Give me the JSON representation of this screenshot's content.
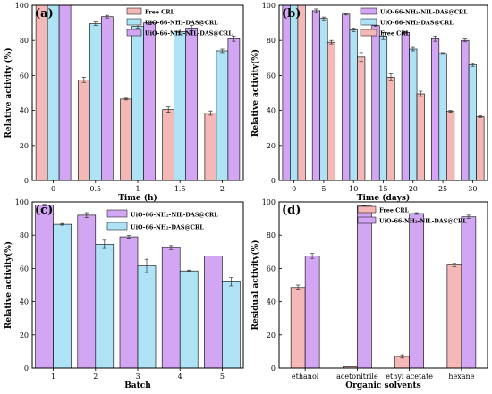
{
  "colors": {
    "free": "#F4B8B6",
    "das": "#AEE3F5",
    "nil": "#D2A6F2",
    "edge": "#000000",
    "error": "#333333"
  },
  "chart_data": [
    {
      "id": "a",
      "panel_label": "(a)",
      "type": "bar",
      "xlabel": "Time (h)",
      "ylabel": "Relative activity (%)",
      "ylim": [
        0,
        100
      ],
      "yticks": [
        0,
        20,
        40,
        60,
        80,
        100
      ],
      "categories": [
        "0",
        "0.5",
        "1",
        "1.5",
        "2"
      ],
      "legend_position": "top-right",
      "series": [
        {
          "name": "Free CRL",
          "color_key": "free",
          "values": [
            100,
            57.5,
            46.5,
            40.5,
            38.5
          ],
          "errors": [
            0,
            1.5,
            0.5,
            1.5,
            1.2
          ]
        },
        {
          "name": "UiO-66-NH₂-DAS@CRL",
          "color_key": "das",
          "values": [
            100,
            89.5,
            88,
            85,
            74
          ],
          "errors": [
            0,
            1.0,
            1.0,
            1.5,
            1.0
          ]
        },
        {
          "name": "UiO-66-NH₂-NIL-DAS@CRL",
          "color_key": "nil",
          "values": [
            100,
            93.5,
            90,
            87,
            81
          ],
          "errors": [
            0,
            0.8,
            1.0,
            1.5,
            1.5
          ]
        }
      ]
    },
    {
      "id": "b",
      "panel_label": "(b)",
      "type": "bar",
      "xlabel": "Time (days)",
      "ylabel": "Relative activity(%)",
      "ylim": [
        0,
        100
      ],
      "yticks": [
        0,
        20,
        40,
        60,
        80,
        100
      ],
      "categories": [
        "0",
        "5",
        "10",
        "15",
        "20",
        "25",
        "30"
      ],
      "legend_position": "top-right",
      "series": [
        {
          "name": "UiO-66-NH₂-NIL-DAS@CRL",
          "color_key": "nil",
          "values": [
            100,
            97,
            95,
            88.5,
            84.5,
            81,
            80
          ],
          "errors": [
            0,
            1.0,
            0.5,
            0.5,
            0.5,
            1.5,
            0.8
          ]
        },
        {
          "name": "UiO-66-NH₂-DAS@CRL",
          "color_key": "das",
          "values": [
            100,
            92.5,
            86,
            82.5,
            75,
            72.5,
            66
          ],
          "errors": [
            0,
            0.8,
            1.0,
            2.0,
            1.0,
            0.5,
            0.8
          ]
        },
        {
          "name": "Free CRL",
          "color_key": "free",
          "values": [
            100,
            79,
            70.5,
            59,
            49.5,
            39.5,
            36.5
          ],
          "errors": [
            0,
            1.0,
            2.5,
            2.0,
            1.5,
            0.5,
            0.5
          ]
        }
      ]
    },
    {
      "id": "c",
      "panel_label": "(c)",
      "type": "bar",
      "xlabel": "Batch",
      "ylabel": "Relative activity(%)",
      "ylim": [
        0,
        100
      ],
      "yticks": [
        0,
        20,
        40,
        60,
        80,
        100
      ],
      "categories": [
        "1",
        "2",
        "3",
        "4",
        "5"
      ],
      "legend_position": "top-right",
      "series": [
        {
          "name": "UiO-66-NH₂-NIL-DAS@CRL",
          "color_key": "nil",
          "values": [
            98,
            92,
            79,
            72.5,
            67.5
          ],
          "errors": [
            0.5,
            1.5,
            0.8,
            1.2,
            0
          ]
        },
        {
          "name": "UiO-66-NH₂-DAS@CRL",
          "color_key": "das",
          "values": [
            86.5,
            74.5,
            61.5,
            58.5,
            52
          ],
          "errors": [
            0.5,
            2.5,
            4.0,
            0.5,
            2.5
          ]
        }
      ]
    },
    {
      "id": "d",
      "panel_label": "(d)",
      "type": "bar",
      "xlabel": "Organic solvents",
      "ylabel": "Residual activity(%)",
      "ylim": [
        0,
        100
      ],
      "yticks": [
        0,
        20,
        40,
        60,
        80,
        100
      ],
      "categories": [
        "ethanol",
        "acetonitrile",
        "ethyl acetate",
        "hexane"
      ],
      "legend_position": "top-right",
      "series": [
        {
          "name": "Free CRL",
          "color_key": "free",
          "values": [
            48.5,
            0.8,
            7,
            62
          ],
          "errors": [
            1.5,
            0,
            1.0,
            1.0
          ]
        },
        {
          "name": "UiO-66-NH₂-NIL-DAS@CRL",
          "color_key": "nil",
          "values": [
            67.5,
            97.5,
            93,
            91
          ],
          "errors": [
            1.5,
            0.3,
            0.5,
            1.0
          ]
        }
      ]
    }
  ]
}
